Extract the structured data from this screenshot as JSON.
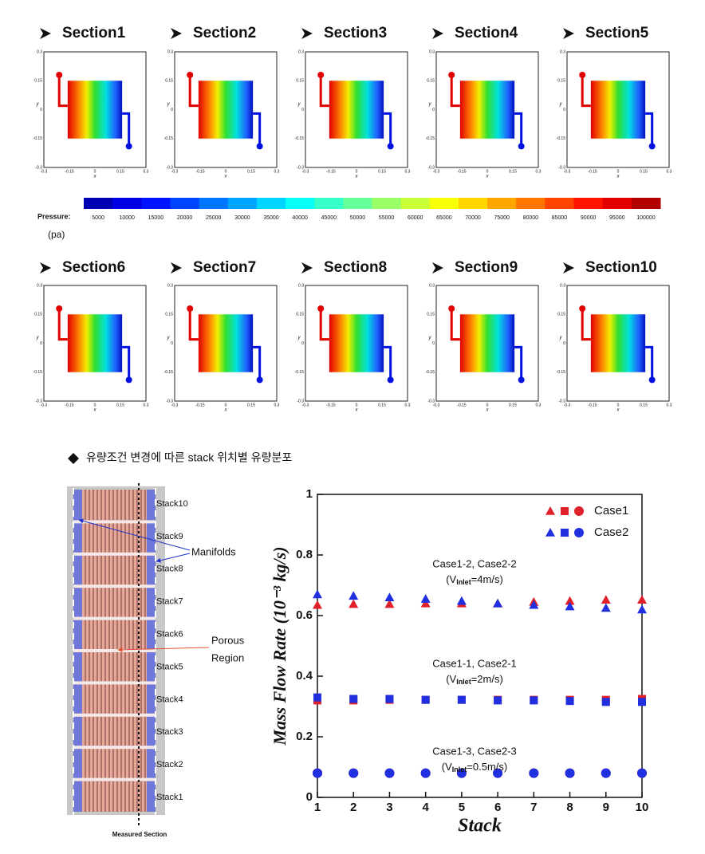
{
  "sections": [
    "Section1",
    "Section2",
    "Section3",
    "Section4",
    "Section5",
    "Section6",
    "Section7",
    "Section8",
    "Section9",
    "Section10"
  ],
  "panel_axis": {
    "ticks": [
      "-0.3",
      "-0.15",
      "0",
      "0.15",
      "0.3"
    ],
    "xlabel": "x",
    "ylabel": "y"
  },
  "colorbar": {
    "label": "Pressure:",
    "unit": "(pa)",
    "ticks": [
      5000,
      10000,
      15000,
      20000,
      25000,
      30000,
      35000,
      40000,
      45000,
      50000,
      55000,
      60000,
      65000,
      70000,
      75000,
      80000,
      85000,
      90000,
      95000,
      100000
    ]
  },
  "heading": "유량조건 변경에 따른 stack 위치별 유량분포",
  "diagram": {
    "stacks": [
      "Stack10",
      "Stack9",
      "Stack8",
      "Stack7",
      "Stack6",
      "Stack5",
      "Stack4",
      "Stack3",
      "Stack2",
      "Stack1"
    ],
    "manifolds": "Manifolds",
    "porous": [
      "Porous",
      "Region"
    ],
    "measured": "Measured Section"
  },
  "chart_data": {
    "type": "scatter",
    "ylabel": "Mass Flow Rate (10⁻³ kg/s)",
    "xlabel": "Stack",
    "xlim": [
      1,
      10
    ],
    "ylim": [
      0,
      1
    ],
    "xticks": [
      1,
      2,
      3,
      4,
      5,
      6,
      7,
      8,
      9,
      10
    ],
    "yticks": [
      0,
      0.2,
      0.4,
      0.6,
      0.8,
      1
    ],
    "x": [
      1,
      2,
      3,
      4,
      5,
      6,
      7,
      8,
      9,
      10
    ],
    "legend": "upper right",
    "series": [
      {
        "name": "Case1",
        "color": "#e0202a",
        "groups": [
          {
            "marker": "triangle",
            "values": [
              0.635,
              0.638,
              0.638,
              0.64,
              0.64,
              0.64,
              0.645,
              0.648,
              0.652,
              0.652
            ]
          },
          {
            "marker": "square",
            "values": [
              0.32,
              0.32,
              0.322,
              0.322,
              0.322,
              0.322,
              0.322,
              0.322,
              0.322,
              0.325
            ]
          },
          {
            "marker": "circle",
            "values": [
              0.08,
              0.08,
              0.08,
              0.08,
              0.08,
              0.08,
              0.08,
              0.08,
              0.08,
              0.08
            ]
          }
        ]
      },
      {
        "name": "Case2",
        "color": "#2030e0",
        "groups": [
          {
            "marker": "triangle",
            "values": [
              0.67,
              0.665,
              0.66,
              0.655,
              0.648,
              0.64,
              0.635,
              0.63,
              0.625,
              0.62
            ]
          },
          {
            "marker": "square",
            "values": [
              0.33,
              0.325,
              0.325,
              0.322,
              0.322,
              0.32,
              0.32,
              0.318,
              0.315,
              0.315
            ]
          },
          {
            "marker": "circle",
            "values": [
              0.08,
              0.08,
              0.08,
              0.08,
              0.08,
              0.08,
              0.08,
              0.08,
              0.08,
              0.08
            ]
          }
        ]
      }
    ],
    "annotations": [
      {
        "text": "Case1-2, Case2-2",
        "parts": [
          "(V",
          "Inlet",
          "=4m/s)"
        ]
      },
      {
        "text": "Case1-1, Case2-1",
        "parts": [
          "(V",
          "Inlet",
          "=2m/s)"
        ]
      },
      {
        "text": "Case1-3, Case2-3",
        "parts": [
          "(V",
          "Inlet",
          "=0.5m/s)"
        ]
      }
    ]
  }
}
